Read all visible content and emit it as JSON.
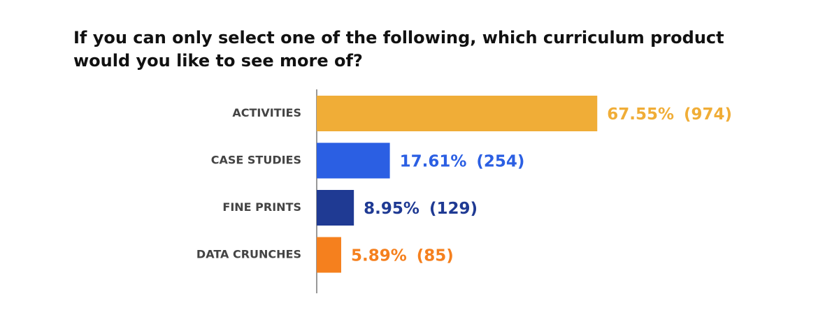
{
  "chart_data": {
    "type": "bar",
    "orientation": "horizontal",
    "title": "If you can only select one of the following, which curriculum product would you like to see more of?",
    "categories": [
      "ACTIVITIES",
      "CASE STUDIES",
      "FINE PRINTS",
      "DATA CRUNCHES"
    ],
    "values": [
      67.55,
      17.61,
      8.95,
      5.89
    ],
    "value_labels": [
      "67.55%",
      "17.61%",
      "8.95%",
      "5.89%"
    ],
    "counts": [
      974,
      254,
      129,
      85
    ],
    "count_labels": [
      "(974)",
      "(254)",
      "(129)",
      "(85)"
    ],
    "colors": [
      "#F0AD37",
      "#2B5FE3",
      "#1F3A93",
      "#F5801E"
    ]
  }
}
